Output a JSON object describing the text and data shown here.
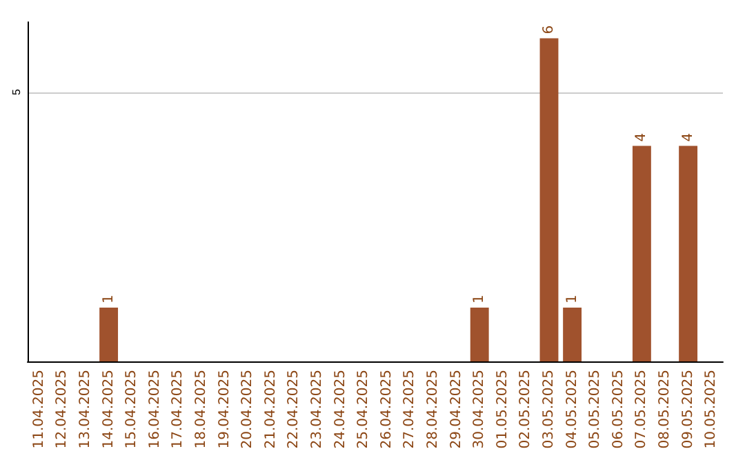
{
  "chart_data": {
    "type": "bar",
    "categories": [
      "11.04.2025",
      "12.04.2025",
      "13.04.2025",
      "14.04.2025",
      "15.04.2025",
      "16.04.2025",
      "17.04.2025",
      "18.04.2025",
      "19.04.2025",
      "20.04.2025",
      "21.04.2025",
      "22.04.2025",
      "23.04.2025",
      "24.04.2025",
      "25.04.2025",
      "26.04.2025",
      "27.04.2025",
      "28.04.2025",
      "29.04.2025",
      "30.04.2025",
      "01.05.2025",
      "02.05.2025",
      "03.05.2025",
      "04.05.2025",
      "05.05.2025",
      "06.05.2025",
      "07.05.2025",
      "08.05.2025",
      "09.05.2025",
      "10.05.2025"
    ],
    "values": [
      null,
      null,
      null,
      1,
      null,
      null,
      null,
      null,
      null,
      null,
      null,
      null,
      null,
      null,
      null,
      null,
      null,
      null,
      null,
      1,
      null,
      null,
      6,
      1,
      null,
      null,
      4,
      null,
      4,
      null
    ],
    "color": "#a0522d",
    "data_labels": true,
    "ylim": [
      0,
      6.3
    ],
    "yticks": [
      5
    ],
    "grid": "y"
  }
}
